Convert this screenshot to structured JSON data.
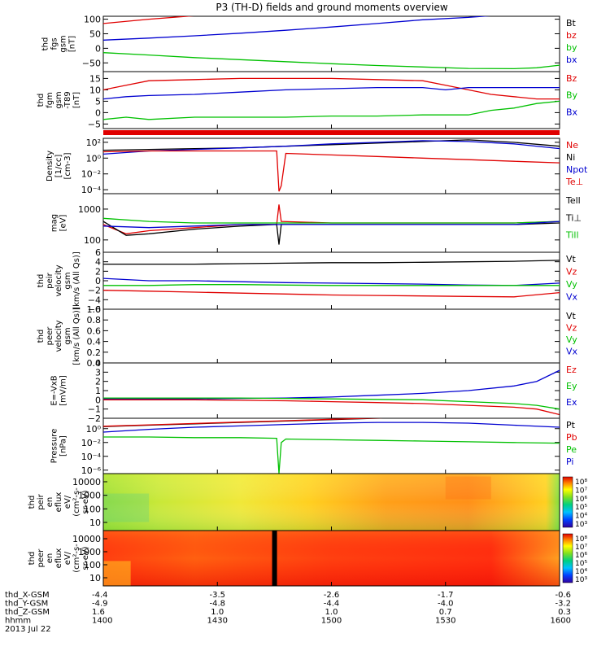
{
  "title": "P3 (TH-D) fields and ground moments overview",
  "colors": {
    "black": "#000000",
    "red": "#e00000",
    "green": "#00c000",
    "blue": "#0000d0"
  },
  "footer": {
    "rows": [
      {
        "label": "thd_X-GSM",
        "values": [
          "-4.4",
          "-3.5",
          "-2.6",
          "-1.7",
          "-0.6"
        ]
      },
      {
        "label": "thd_Y-GSM",
        "values": [
          "-4.9",
          "-4.8",
          "-4.4",
          "-4.0",
          "-3.2"
        ]
      },
      {
        "label": "thd_Z-GSM",
        "values": [
          "1.6",
          "1.0",
          "1.0",
          "0.7",
          "0.3"
        ]
      },
      {
        "label": "hhmm",
        "values": [
          "1400",
          "1430",
          "1500",
          "1530",
          "1600"
        ]
      }
    ],
    "date": "2013 Jul 22"
  },
  "chart_data": [
    {
      "type": "line",
      "id": "fgs",
      "ylabel": [
        "thd",
        "fgs",
        "gsm",
        "[nT]"
      ],
      "yticks": [
        "100",
        "50",
        "0",
        "−50"
      ],
      "tickvals": [
        100,
        50,
        0,
        -50
      ],
      "ylim": [
        -80,
        110
      ],
      "scale": "linear",
      "legend": [
        {
          "name": "Bt",
          "color": "black"
        },
        {
          "name": "bz",
          "color": "red"
        },
        {
          "name": "by",
          "color": "green"
        },
        {
          "name": "bx",
          "color": "blue"
        }
      ],
      "series": [
        {
          "color": "red",
          "x": [
            0,
            0.1,
            0.2
          ],
          "y": [
            85,
            100,
            112
          ]
        },
        {
          "color": "blue",
          "x": [
            0,
            0.1,
            0.2,
            0.3,
            0.4,
            0.5,
            0.6,
            0.7,
            0.8,
            0.85
          ],
          "y": [
            28,
            35,
            43,
            52,
            62,
            73,
            85,
            98,
            106,
            112
          ]
        },
        {
          "color": "green",
          "x": [
            0,
            0.1,
            0.2,
            0.3,
            0.4,
            0.5,
            0.6,
            0.7,
            0.8,
            0.9,
            0.95,
            1
          ],
          "y": [
            -15,
            -23,
            -32,
            -39,
            -46,
            -53,
            -59,
            -64,
            -69,
            -70,
            -67,
            -58
          ]
        }
      ]
    },
    {
      "type": "line",
      "id": "fgm",
      "ylabel": [
        "thd",
        "fgm",
        "gsm",
        "-T89",
        "[nT]"
      ],
      "yticks": [
        "15",
        "10",
        "5",
        "0",
        "−5"
      ],
      "tickvals": [
        15,
        10,
        5,
        0,
        -5
      ],
      "ylim": [
        -7,
        18
      ],
      "scale": "linear",
      "legend": [
        {
          "name": "Bz",
          "color": "red"
        },
        {
          "name": "By",
          "color": "green"
        },
        {
          "name": "Bx",
          "color": "blue"
        }
      ],
      "series": [
        {
          "color": "red",
          "x": [
            0,
            0.05,
            0.1,
            0.2,
            0.3,
            0.4,
            0.5,
            0.6,
            0.7,
            0.75,
            0.8,
            0.85,
            0.9,
            0.95,
            1
          ],
          "y": [
            10,
            12,
            14,
            14.5,
            15,
            15,
            15,
            14.5,
            14,
            12,
            10,
            8,
            7,
            6,
            6
          ]
        },
        {
          "color": "blue",
          "x": [
            0,
            0.05,
            0.1,
            0.2,
            0.3,
            0.4,
            0.5,
            0.6,
            0.7,
            0.75,
            0.8,
            0.9,
            1
          ],
          "y": [
            6,
            7,
            7.5,
            8,
            9,
            10,
            10.5,
            11,
            11,
            10,
            11,
            11,
            11
          ]
        },
        {
          "color": "green",
          "x": [
            0,
            0.05,
            0.1,
            0.2,
            0.3,
            0.4,
            0.5,
            0.6,
            0.7,
            0.8,
            0.85,
            0.9,
            0.95,
            1
          ],
          "y": [
            -3,
            -2,
            -3,
            -2,
            -2,
            -2,
            -1.5,
            -1.5,
            -1,
            -1,
            1,
            2,
            4,
            5
          ]
        }
      ]
    },
    {
      "type": "line",
      "id": "density",
      "ylabel": [
        "Density",
        "[1/cc]",
        "[cm-3]"
      ],
      "yticks": [
        "10²",
        "10⁰",
        "10⁻²",
        "10⁻⁴"
      ],
      "tickvals": [
        2,
        0,
        -2,
        -4
      ],
      "ylim": [
        -4.5,
        2.5
      ],
      "scale": "log10",
      "legend": [
        {
          "name": "Ne",
          "color": "red"
        },
        {
          "name": "Ni",
          "color": "black"
        },
        {
          "name": "Npot",
          "color": "blue"
        },
        {
          "name": "Te⊥",
          "color": "red"
        }
      ],
      "series": [
        {
          "color": "black",
          "x": [
            0,
            0.1,
            0.2,
            0.3,
            0.4,
            0.5,
            0.6,
            0.7,
            0.8,
            0.9,
            1
          ],
          "y": [
            1,
            1.1,
            1.2,
            1.3,
            1.5,
            1.7,
            1.9,
            2.1,
            2.3,
            2,
            1.5
          ]
        },
        {
          "color": "blue",
          "x": [
            0,
            0.1,
            0.2,
            0.3,
            0.4,
            0.5,
            0.6,
            0.7,
            0.8,
            0.9,
            1
          ],
          "y": [
            0.5,
            0.9,
            1.1,
            1.3,
            1.5,
            1.8,
            2,
            2.2,
            2.1,
            1.8,
            1.2
          ]
        },
        {
          "color": "red",
          "x": [
            0,
            0.1,
            0.2,
            0.3,
            0.38,
            0.385,
            0.39,
            0.4,
            0.5,
            0.6,
            0.7,
            0.8,
            0.9,
            1
          ],
          "y": [
            0.8,
            0.9,
            0.9,
            0.9,
            0.9,
            -4.2,
            -3.5,
            0.6,
            0.4,
            0.2,
            0,
            -0.2,
            -0.4,
            -0.6
          ]
        }
      ]
    },
    {
      "type": "line",
      "id": "temp",
      "ylabel": [
        "mag",
        "[eV]"
      ],
      "yticks": [
        "1000",
        "100"
      ],
      "tickvals": [
        3,
        2
      ],
      "ylim": [
        1.6,
        3.5
      ],
      "scale": "log10",
      "legend": [
        {
          "name": "Tell",
          "color": "black"
        },
        {
          "name": "Ti⊥",
          "color": "black"
        },
        {
          "name": "Till",
          "color": "green"
        }
      ],
      "series": [
        {
          "color": "red",
          "x": [
            0,
            0.05,
            0.1,
            0.2,
            0.3,
            0.38,
            0.385,
            0.39,
            0.5,
            0.6,
            0.7,
            0.8,
            0.9,
            1
          ],
          "y": [
            2.5,
            2.2,
            2.3,
            2.4,
            2.5,
            2.5,
            3.15,
            2.6,
            2.55,
            2.55,
            2.55,
            2.55,
            2.55,
            2.6
          ]
        },
        {
          "color": "black",
          "x": [
            0,
            0.05,
            0.1,
            0.2,
            0.3,
            0.38,
            0.385,
            0.39,
            0.5,
            0.6,
            0.7,
            0.8,
            0.9,
            1
          ],
          "y": [
            2.6,
            2.15,
            2.2,
            2.35,
            2.45,
            2.5,
            1.85,
            2.5,
            2.5,
            2.5,
            2.5,
            2.5,
            2.5,
            2.55
          ]
        },
        {
          "color": "green",
          "x": [
            0,
            0.1,
            0.2,
            0.3,
            0.4,
            0.5,
            0.6,
            0.7,
            0.8,
            0.9,
            1
          ],
          "y": [
            2.7,
            2.6,
            2.55,
            2.55,
            2.55,
            2.55,
            2.55,
            2.55,
            2.55,
            2.55,
            2.6
          ]
        },
        {
          "color": "blue",
          "x": [
            0,
            0.1,
            0.2,
            0.3,
            0.4,
            0.5,
            0.6,
            0.7,
            0.8,
            0.9,
            1
          ],
          "y": [
            2.45,
            2.4,
            2.45,
            2.5,
            2.5,
            2.5,
            2.5,
            2.5,
            2.5,
            2.5,
            2.6
          ]
        }
      ]
    },
    {
      "type": "line",
      "id": "peir",
      "ylabel": [
        "thd",
        "peir",
        "velocity",
        "gsm",
        "[km/s (All Qs)]"
      ],
      "yticks": [
        "6",
        "4",
        "2",
        "0",
        "−2",
        "−4",
        "−6"
      ],
      "tickvals": [
        6,
        4,
        2,
        0,
        -2,
        -4,
        -6
      ],
      "ylim": [
        -6,
        6
      ],
      "scale": "linear",
      "legend": [
        {
          "name": "Vt",
          "color": "black"
        },
        {
          "name": "Vz",
          "color": "red"
        },
        {
          "name": "Vy",
          "color": "green"
        },
        {
          "name": "Vx",
          "color": "blue"
        }
      ],
      "series": [
        {
          "color": "black",
          "x": [
            0,
            0.1,
            0.2,
            0.3,
            0.4,
            0.5,
            0.6,
            0.7,
            0.8,
            0.9,
            1
          ],
          "y": [
            3.5,
            3.5,
            3.5,
            3.6,
            3.7,
            3.8,
            3.8,
            3.9,
            4,
            4.1,
            4.3
          ]
        },
        {
          "color": "blue",
          "x": [
            0,
            0.1,
            0.2,
            0.3,
            0.4,
            0.5,
            0.6,
            0.7,
            0.8,
            0.9,
            1
          ],
          "y": [
            0.5,
            0,
            0,
            -0.2,
            -0.4,
            -0.5,
            -0.6,
            -0.7,
            -0.9,
            -1,
            -0.5
          ]
        },
        {
          "color": "green",
          "x": [
            0,
            0.1,
            0.2,
            0.3,
            0.4,
            0.5,
            0.6,
            0.7,
            0.8,
            0.9,
            1
          ],
          "y": [
            -1,
            -1,
            -0.8,
            -0.8,
            -0.9,
            -1,
            -1,
            -1,
            -1,
            -1,
            -1
          ]
        },
        {
          "color": "red",
          "x": [
            0,
            0.1,
            0.2,
            0.3,
            0.4,
            0.5,
            0.6,
            0.7,
            0.8,
            0.9,
            1
          ],
          "y": [
            -2,
            -2.2,
            -2.4,
            -2.6,
            -2.8,
            -3,
            -3.1,
            -3.2,
            -3.3,
            -3.4,
            -2.5
          ]
        }
      ]
    },
    {
      "type": "line",
      "id": "peer",
      "ylabel": [
        "thd",
        "peer",
        "velocity",
        "gsm",
        "[km/s (All Qs)]"
      ],
      "yticks": [
        "1.0",
        "0.8",
        "0.6",
        "0.4",
        "0.2",
        "0.0"
      ],
      "tickvals": [
        1,
        0.8,
        0.6,
        0.4,
        0.2,
        0
      ],
      "ylim": [
        0,
        1
      ],
      "scale": "linear",
      "legend": [
        {
          "name": "Vt",
          "color": "black"
        },
        {
          "name": "Vz",
          "color": "red"
        },
        {
          "name": "Vy",
          "color": "green"
        },
        {
          "name": "Vx",
          "color": "blue"
        }
      ],
      "series": []
    },
    {
      "type": "line",
      "id": "efield",
      "ylabel": [
        "E=-VxB",
        "[mV/m]"
      ],
      "yticks": [
        "4",
        "3",
        "2",
        "1",
        "0",
        "−1",
        "−2"
      ],
      "tickvals": [
        4,
        3,
        2,
        1,
        0,
        -1,
        -2
      ],
      "ylim": [
        -2,
        4
      ],
      "scale": "linear",
      "legend": [
        {
          "name": "Ez",
          "color": "red"
        },
        {
          "name": "Ey",
          "color": "green"
        },
        {
          "name": "Ex",
          "color": "blue"
        }
      ],
      "series": [
        {
          "color": "blue",
          "x": [
            0,
            0.1,
            0.2,
            0.3,
            0.4,
            0.5,
            0.6,
            0.7,
            0.8,
            0.9,
            0.95,
            1
          ],
          "y": [
            0.1,
            0.1,
            0.1,
            0.15,
            0.2,
            0.3,
            0.5,
            0.7,
            1,
            1.5,
            2,
            3.2
          ]
        },
        {
          "color": "green",
          "x": [
            0,
            0.1,
            0.2,
            0.3,
            0.4,
            0.5,
            0.6,
            0.7,
            0.8,
            0.9,
            0.95,
            1
          ],
          "y": [
            0.2,
            0.2,
            0.2,
            0.2,
            0.15,
            0.1,
            0.05,
            0,
            -0.2,
            -0.4,
            -0.6,
            -1
          ]
        },
        {
          "color": "red",
          "x": [
            0,
            0.1,
            0.2,
            0.3,
            0.4,
            0.5,
            0.6,
            0.7,
            0.8,
            0.9,
            0.95,
            1
          ],
          "y": [
            0,
            0,
            0,
            -0.05,
            -0.1,
            -0.2,
            -0.3,
            -0.4,
            -0.6,
            -0.8,
            -1,
            -1.6
          ]
        }
      ]
    },
    {
      "type": "line",
      "id": "pressure",
      "ylabel": [
        "Pressure",
        "[nPa]"
      ],
      "yticks": [
        "10⁰",
        "10⁻²",
        "10⁻⁴",
        "10⁻⁶"
      ],
      "tickvals": [
        0,
        -2,
        -4,
        -6
      ],
      "ylim": [
        -6.5,
        1.5
      ],
      "scale": "log10",
      "legend": [
        {
          "name": "Pt",
          "color": "black"
        },
        {
          "name": "Pb",
          "color": "red"
        },
        {
          "name": "Pe",
          "color": "green"
        },
        {
          "name": "Pi",
          "color": "blue"
        }
      ],
      "series": [
        {
          "color": "black",
          "x": [
            0,
            0.1,
            0.2,
            0.3,
            0.4,
            0.5,
            0.6,
            0.7,
            0.72
          ],
          "y": [
            0.3,
            0.5,
            0.7,
            0.9,
            1.1,
            1.3,
            1.5,
            1.7,
            1.75
          ]
        },
        {
          "color": "red",
          "x": [
            0,
            0.1,
            0.2,
            0.3,
            0.4,
            0.5,
            0.6,
            0.68
          ],
          "y": [
            0.35,
            0.55,
            0.75,
            0.95,
            1.15,
            1.35,
            1.55,
            1.72
          ]
        },
        {
          "color": "blue",
          "x": [
            0,
            0.1,
            0.2,
            0.3,
            0.4,
            0.5,
            0.6,
            0.7,
            0.8,
            0.9,
            1
          ],
          "y": [
            -0.5,
            -0.1,
            0.2,
            0.4,
            0.6,
            0.8,
            0.9,
            0.9,
            0.8,
            0.5,
            0.2
          ]
        },
        {
          "color": "green",
          "x": [
            0,
            0.1,
            0.2,
            0.3,
            0.38,
            0.385,
            0.39,
            0.4,
            0.5,
            0.6,
            0.7,
            0.8,
            0.9,
            1
          ],
          "y": [
            -1.2,
            -1.2,
            -1.3,
            -1.3,
            -1.4,
            -6.5,
            -2,
            -1.5,
            -1.6,
            -1.7,
            -1.8,
            -1.9,
            -2,
            -2.1
          ]
        }
      ]
    },
    {
      "type": "heatmap",
      "id": "peir_en",
      "ylabel": [
        "thd",
        "peir",
        "en",
        "eflux",
        "eV/",
        "(cm²-s-",
        "sr-eV)"
      ],
      "yticks": [
        "10000",
        "1000",
        "100",
        "10"
      ],
      "colorbar": {
        "ticks": [
          "10⁸",
          "10⁷",
          "10⁶",
          "10⁵",
          "10⁴",
          "10³"
        ]
      }
    },
    {
      "type": "heatmap",
      "id": "peer_en",
      "ylabel": [
        "thd",
        "peer",
        "en",
        "eflux",
        "eV/",
        "(cm²-s-",
        "sr-eV)"
      ],
      "yticks": [
        "10000",
        "1000",
        "100",
        "10"
      ],
      "colorbar": {
        "ticks": [
          "10⁸",
          "10⁷",
          "10⁶",
          "10⁵",
          "10⁴",
          "10³"
        ]
      }
    }
  ]
}
